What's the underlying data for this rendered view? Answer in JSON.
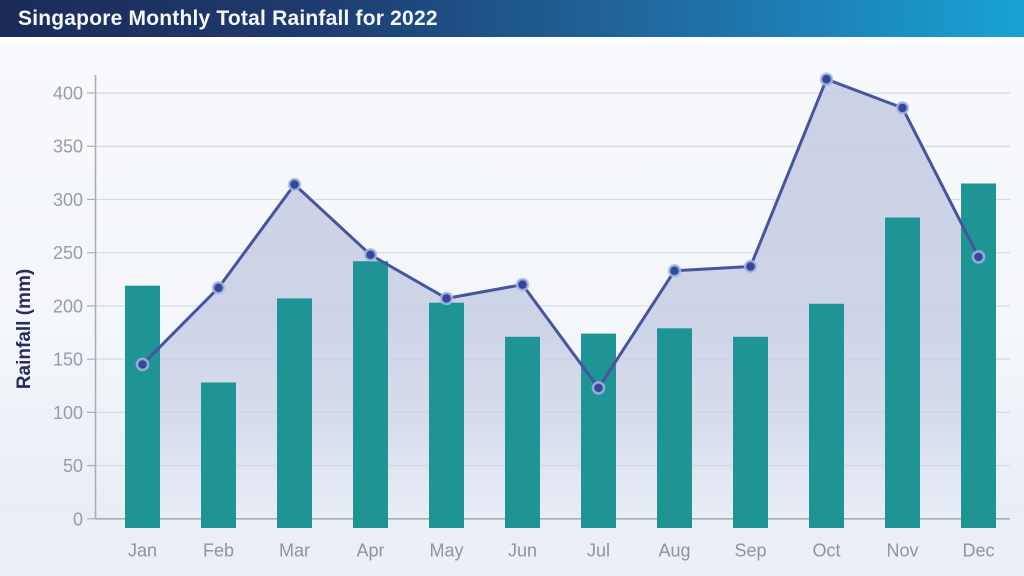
{
  "header": {
    "title": "Singapore Monthly Total Rainfall for 2022"
  },
  "colors": {
    "banner_gradient_left": "#1c2b58",
    "banner_gradient_right": "#18a2d4",
    "title_text": "#f4f7fb",
    "bar_fill": "#1e9594",
    "line_stroke": "#47549e",
    "marker_fill": "#36479a",
    "marker_ring": "#a9bbe3",
    "area_fill": "#c7cee4",
    "gridline": "#d7dbe3",
    "axis_line": "#a9aeb8",
    "tick_text": "#979da6",
    "axis_title_text": "#272e5d"
  },
  "chart_data": {
    "type": "bar",
    "subtype": "bar-with-line-overlay-and-area-fill",
    "title": "Singapore Monthly Total Rainfall for 2022",
    "xlabel": "",
    "ylabel": "Rainfall (mm)",
    "categories": [
      "Jan",
      "Feb",
      "Mar",
      "Apr",
      "May",
      "Jun",
      "Jul",
      "Aug",
      "Sep",
      "Oct",
      "Nov",
      "Dec"
    ],
    "series": [
      {
        "name": "monthly-total-rainfall-bars",
        "render": "bar",
        "values": [
          219,
          128,
          207,
          242,
          203,
          171,
          174,
          179,
          171,
          202,
          283,
          315
        ]
      },
      {
        "name": "rainfall-line-with-markers",
        "render": "line",
        "values": [
          145,
          217,
          314,
          248,
          207,
          220,
          123,
          233,
          237,
          413,
          386,
          246
        ]
      }
    ],
    "ylim": [
      0,
      430
    ],
    "yticks": [
      0,
      50,
      100,
      150,
      200,
      250,
      300,
      350,
      400
    ],
    "grid": true,
    "legend_position": "none"
  }
}
